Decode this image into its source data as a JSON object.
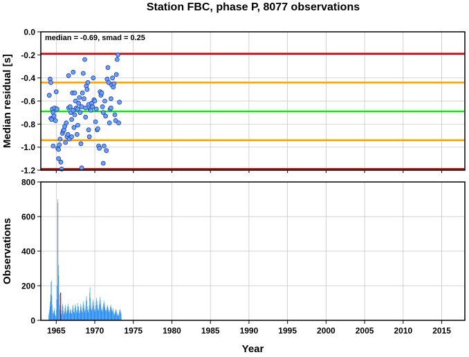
{
  "title": "Station FBC, phase P, 8077 observations",
  "colors": {
    "red_limits": "#dd0000",
    "orange_limits": "#ffa500",
    "median_line": "#00ee00",
    "points_fill": "#6aa0ff",
    "points_stroke": "#1c3fb0",
    "bars": "#2a8ff0",
    "bar_highlight": "#dd0000",
    "grid": "#c0c0c0"
  },
  "chart_data": [
    {
      "type": "scatter",
      "annotation": "median = -0.69, smad = 0.25",
      "ylabel": "Median residual [s]",
      "xlim": [
        1963.0,
        2018.0
      ],
      "ylim": [
        -1.2,
        0.0
      ],
      "yticks": [
        0.0,
        -0.2,
        -0.4,
        -0.6,
        -0.8,
        -1.0,
        -1.2
      ],
      "ytick_labels": [
        "0.0",
        "-0.2",
        "-0.4",
        "-0.6",
        "-0.8",
        "-1.0",
        "-1.2"
      ],
      "grid": true,
      "hlines": [
        {
          "y": -0.19,
          "color_key": "red_limits"
        },
        {
          "y": -0.44,
          "color_key": "orange_limits"
        },
        {
          "y": -0.69,
          "color_key": "median_line"
        },
        {
          "y": -0.94,
          "color_key": "orange_limits"
        },
        {
          "y": -1.19,
          "color_key": "red_limits"
        }
      ],
      "points": [
        [
          1964.1,
          -0.55
        ],
        [
          1964.2,
          -0.41
        ],
        [
          1964.3,
          -0.44
        ],
        [
          1964.3,
          -0.75
        ],
        [
          1964.4,
          -0.76
        ],
        [
          1964.5,
          -0.67
        ],
        [
          1964.6,
          -0.7
        ],
        [
          1964.7,
          -0.73
        ],
        [
          1964.8,
          -0.66
        ],
        [
          1964.9,
          -0.77
        ],
        [
          1964.6,
          -0.99
        ],
        [
          1965.0,
          -0.52
        ],
        [
          1965.1,
          -0.67
        ],
        [
          1965.2,
          -1.01
        ],
        [
          1965.3,
          -1.1
        ],
        [
          1965.3,
          -1.02
        ],
        [
          1965.4,
          -0.98
        ],
        [
          1965.5,
          -0.93
        ],
        [
          1965.6,
          -1.13
        ],
        [
          1965.7,
          -1.19
        ],
        [
          1965.8,
          -0.88
        ],
        [
          1965.9,
          -0.86
        ],
        [
          1966.0,
          -0.85
        ],
        [
          1966.1,
          -0.82
        ],
        [
          1966.2,
          -0.96
        ],
        [
          1966.3,
          -0.79
        ],
        [
          1966.4,
          -0.91
        ],
        [
          1966.5,
          -0.89
        ],
        [
          1966.6,
          -0.38
        ],
        [
          1966.6,
          -0.66
        ],
        [
          1966.7,
          -0.93
        ],
        [
          1966.8,
          -0.65
        ],
        [
          1966.9,
          -0.7
        ],
        [
          1967.0,
          -0.76
        ],
        [
          1967.0,
          -0.91
        ],
        [
          1967.1,
          -0.53
        ],
        [
          1967.2,
          -0.35
        ],
        [
          1967.2,
          -0.68
        ],
        [
          1967.3,
          -0.83
        ],
        [
          1967.4,
          -0.53
        ],
        [
          1967.4,
          -0.72
        ],
        [
          1967.5,
          -0.6
        ],
        [
          1967.6,
          -0.66
        ],
        [
          1967.7,
          -0.89
        ],
        [
          1967.8,
          -0.67
        ],
        [
          1967.8,
          -0.81
        ],
        [
          1967.9,
          -0.62
        ],
        [
          1968.0,
          -0.57
        ],
        [
          1968.1,
          -0.7
        ],
        [
          1968.2,
          -0.97
        ],
        [
          1968.3,
          -0.65
        ],
        [
          1968.3,
          -1.18
        ],
        [
          1968.4,
          -0.53
        ],
        [
          1968.5,
          -0.36
        ],
        [
          1968.6,
          -0.58
        ],
        [
          1968.7,
          -0.24
        ],
        [
          1968.8,
          -0.74
        ],
        [
          1968.8,
          -0.66
        ],
        [
          1968.9,
          -0.47
        ],
        [
          1969.0,
          -0.5
        ],
        [
          1969.1,
          -0.44
        ],
        [
          1969.2,
          -0.63
        ],
        [
          1969.2,
          -0.85
        ],
        [
          1969.3,
          -0.91
        ],
        [
          1969.4,
          -0.67
        ],
        [
          1969.5,
          -0.68
        ],
        [
          1969.6,
          -0.62
        ],
        [
          1969.7,
          -0.65
        ],
        [
          1969.8,
          -0.4
        ],
        [
          1969.9,
          -0.59
        ],
        [
          1970.0,
          -0.6
        ],
        [
          1970.1,
          -0.78
        ],
        [
          1970.2,
          -0.67
        ],
        [
          1970.3,
          -0.85
        ],
        [
          1970.4,
          -0.84
        ],
        [
          1970.5,
          -0.99
        ],
        [
          1970.6,
          -1.01
        ],
        [
          1970.7,
          -0.52
        ],
        [
          1970.8,
          -0.55
        ],
        [
          1970.9,
          -0.53
        ],
        [
          1971.0,
          -0.65
        ],
        [
          1971.1,
          -0.7
        ],
        [
          1971.1,
          -1.14
        ],
        [
          1971.2,
          -0.99
        ],
        [
          1971.3,
          -0.6
        ],
        [
          1971.4,
          -0.73
        ],
        [
          1971.5,
          -1.03
        ],
        [
          1971.6,
          -0.41
        ],
        [
          1971.7,
          -0.31
        ],
        [
          1971.8,
          -0.44
        ],
        [
          1971.9,
          -0.79
        ],
        [
          1972.0,
          -0.67
        ],
        [
          1972.1,
          -0.66
        ],
        [
          1972.1,
          -0.58
        ],
        [
          1972.2,
          -0.46
        ],
        [
          1972.3,
          -0.4
        ],
        [
          1972.4,
          -0.48
        ],
        [
          1972.5,
          -0.45
        ],
        [
          1972.6,
          -0.72
        ],
        [
          1972.7,
          -0.77
        ],
        [
          1972.8,
          -0.37
        ],
        [
          1972.9,
          -0.24
        ],
        [
          1973.0,
          -0.2
        ],
        [
          1973.1,
          -0.79
        ],
        [
          1973.2,
          -0.61
        ]
      ]
    },
    {
      "type": "bar",
      "ylabel": "Observations",
      "xlabel": "Year",
      "xlim": [
        1963.0,
        2018.0
      ],
      "ylim": [
        0,
        800
      ],
      "yticks": [
        0,
        200,
        400,
        600,
        800
      ],
      "xticks": [
        1965,
        1970,
        1975,
        1980,
        1985,
        1990,
        1995,
        2000,
        2005,
        2010,
        2015
      ],
      "grid": true,
      "highlight": {
        "x": 1965.5,
        "value": 160,
        "color_key": "bar_highlight"
      },
      "x_start": 1964.0,
      "bin_width": 0.05,
      "values": [
        30,
        45,
        60,
        80,
        110,
        150,
        220,
        230,
        140,
        90,
        60,
        40,
        35,
        50,
        70,
        55,
        40,
        30,
        25,
        20,
        60,
        120,
        200,
        700,
        680,
        320,
        260,
        150,
        90,
        60,
        40,
        35,
        30,
        40,
        60,
        85,
        95,
        80,
        55,
        40,
        35,
        50,
        70,
        90,
        75,
        55,
        45,
        40,
        60,
        80,
        95,
        80,
        60,
        45,
        40,
        55,
        70,
        60,
        45,
        35,
        40,
        60,
        80,
        90,
        70,
        50,
        40,
        50,
        75,
        95,
        85,
        65,
        50,
        40,
        55,
        80,
        100,
        80,
        60,
        45,
        40,
        55,
        75,
        95,
        80,
        60,
        50,
        45,
        70,
        90,
        110,
        90,
        70,
        55,
        45,
        60,
        80,
        120,
        140,
        110,
        80,
        60,
        50,
        45,
        65,
        85,
        160,
        190,
        130,
        90,
        70,
        60,
        55,
        75,
        100,
        120,
        105,
        85,
        65,
        55,
        50,
        65,
        85,
        110,
        130,
        115,
        90,
        70,
        60,
        55,
        70,
        90,
        110,
        135,
        120,
        95,
        75,
        60,
        55,
        50,
        65,
        80,
        95,
        115,
        100,
        85,
        70,
        60,
        55,
        50,
        60,
        75,
        90,
        80,
        70,
        60,
        50,
        45,
        55,
        65,
        80,
        90,
        75,
        65,
        55,
        50,
        60,
        70,
        50,
        40,
        35,
        30,
        45,
        55,
        65,
        60,
        50,
        40,
        35,
        30,
        25,
        30,
        40,
        50,
        60,
        65,
        55,
        45,
        35
      ]
    }
  ]
}
